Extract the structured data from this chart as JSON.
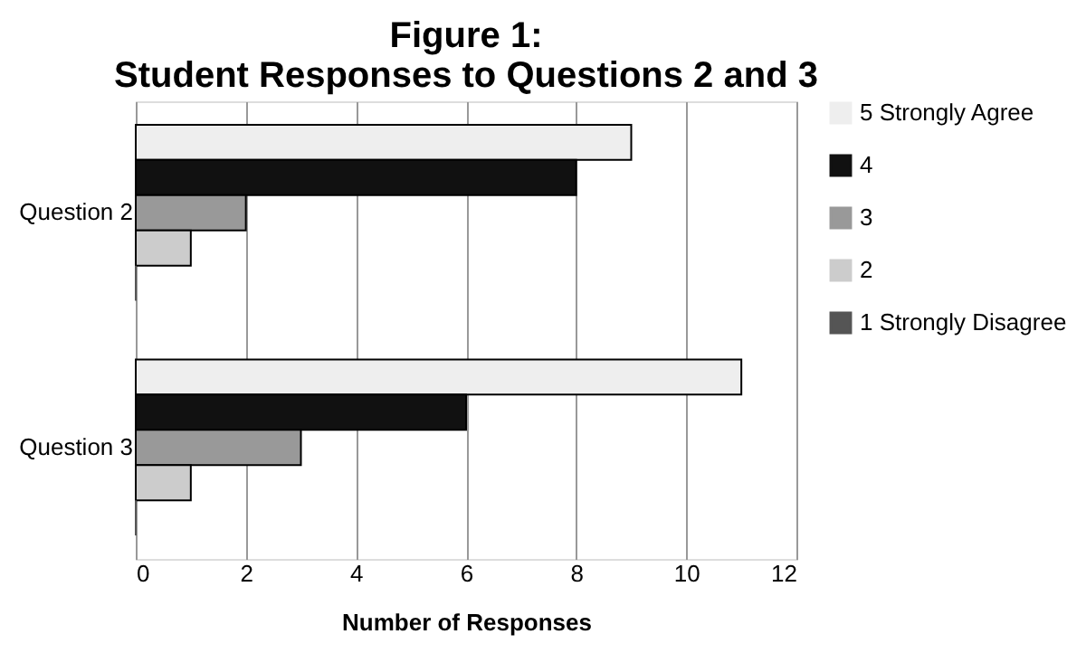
{
  "chart_data": {
    "type": "bar",
    "orientation": "horizontal",
    "title": "Figure 1:\nStudent Responses to Questions 2 and 3",
    "xlabel": "Number of Responses",
    "categories": [
      "Question 2",
      "Question 3"
    ],
    "series": [
      {
        "name": "5 Strongly Agree",
        "color": "#eeeeee",
        "values": [
          9,
          11
        ]
      },
      {
        "name": "4",
        "color": "#111111",
        "values": [
          8,
          6
        ]
      },
      {
        "name": "3",
        "color": "#999999",
        "values": [
          2,
          3
        ]
      },
      {
        "name": "2",
        "color": "#cccccc",
        "values": [
          1,
          1
        ]
      },
      {
        "name": "1 Strongly Disagree",
        "color": "#555555",
        "values": [
          0,
          0
        ]
      }
    ],
    "xlim": [
      0,
      12
    ],
    "xticks": [
      0,
      2,
      4,
      6,
      8,
      10,
      12
    ],
    "grid": "x",
    "legend": "right"
  }
}
